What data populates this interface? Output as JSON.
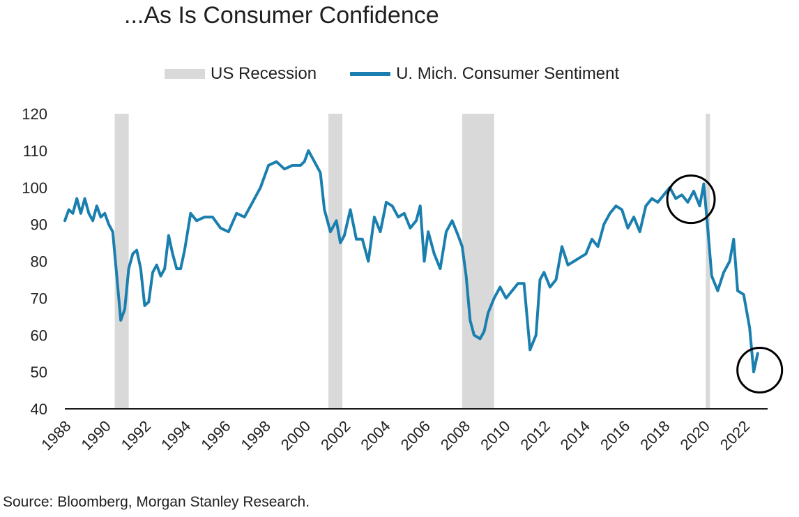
{
  "title": "...As Is Consumer Confidence",
  "source": "Source: Bloomberg, Morgan Stanley Research.",
  "chart_data": {
    "type": "line",
    "title": "...As Is Consumer Confidence",
    "ylim": [
      40,
      120
    ],
    "yticks": [
      40,
      50,
      60,
      70,
      80,
      90,
      100,
      110,
      120
    ],
    "xlim": [
      1988,
      2023.2
    ],
    "xticks": [
      "1988",
      "1990",
      "1992",
      "1994",
      "1996",
      "1998",
      "2000",
      "2002",
      "2004",
      "2006",
      "2008",
      "2010",
      "2012",
      "2014",
      "2016",
      "2018",
      "2020",
      "2022"
    ],
    "grid": false,
    "legend_position": "top",
    "recessions": {
      "name": "US Recession",
      "color": "#d9d9d9",
      "periods": [
        [
          1990.5,
          1991.2
        ],
        [
          2001.2,
          2001.9
        ],
        [
          2007.9,
          2009.5
        ],
        [
          2020.1,
          2020.3
        ]
      ]
    },
    "series": [
      {
        "name": "U. Mich. Consumer Sentiment",
        "color": "#1a7fae",
        "x": [
          1988.0,
          1988.2,
          1988.4,
          1988.6,
          1988.8,
          1989.0,
          1989.2,
          1989.4,
          1989.6,
          1989.8,
          1990.0,
          1990.2,
          1990.4,
          1990.6,
          1990.8,
          1991.0,
          1991.2,
          1991.4,
          1991.6,
          1991.8,
          1992.0,
          1992.2,
          1992.4,
          1992.6,
          1992.8,
          1993.0,
          1993.2,
          1993.4,
          1993.6,
          1993.8,
          1994.0,
          1994.3,
          1994.6,
          1995.0,
          1995.4,
          1995.8,
          1996.2,
          1996.6,
          1997.0,
          1997.4,
          1997.8,
          1998.2,
          1998.6,
          1999.0,
          1999.4,
          1999.8,
          2000.0,
          2000.2,
          2000.5,
          2000.8,
          2001.0,
          2001.3,
          2001.6,
          2001.8,
          2002.0,
          2002.3,
          2002.6,
          2002.9,
          2003.2,
          2003.5,
          2003.8,
          2004.1,
          2004.4,
          2004.7,
          2005.0,
          2005.3,
          2005.6,
          2005.8,
          2006.0,
          2006.2,
          2006.5,
          2006.8,
          2007.1,
          2007.4,
          2007.7,
          2007.9,
          2008.1,
          2008.3,
          2008.5,
          2008.8,
          2009.0,
          2009.2,
          2009.5,
          2009.8,
          2010.1,
          2010.4,
          2010.7,
          2011.0,
          2011.3,
          2011.6,
          2011.8,
          2012.0,
          2012.3,
          2012.6,
          2012.9,
          2013.2,
          2013.5,
          2013.8,
          2014.1,
          2014.4,
          2014.7,
          2015.0,
          2015.3,
          2015.6,
          2015.9,
          2016.2,
          2016.5,
          2016.8,
          2017.1,
          2017.4,
          2017.7,
          2018.0,
          2018.3,
          2018.6,
          2018.9,
          2019.2,
          2019.5,
          2019.8,
          2020.0,
          2020.2,
          2020.4,
          2020.7,
          2021.0,
          2021.3,
          2021.5,
          2021.7,
          2022.0,
          2022.3,
          2022.5,
          2022.7
        ],
        "values": [
          91,
          94,
          93,
          97,
          93,
          97,
          93,
          91,
          95,
          92,
          93,
          90,
          88,
          76,
          64,
          67,
          78,
          82,
          83,
          78,
          68,
          69,
          77,
          79,
          76,
          78,
          87,
          82,
          78,
          78,
          83,
          93,
          91,
          92,
          92,
          89,
          88,
          93,
          92,
          96,
          100,
          106,
          107,
          105,
          106,
          106,
          107,
          110,
          107,
          104,
          94,
          88,
          91,
          85,
          87,
          94,
          86,
          86,
          80,
          92,
          88,
          96,
          95,
          92,
          93,
          89,
          91,
          95,
          80,
          88,
          82,
          78,
          88,
          91,
          87,
          84,
          76,
          64,
          60,
          59,
          61,
          66,
          70,
          73,
          70,
          72,
          74,
          74,
          56,
          60,
          75,
          77,
          73,
          75,
          84,
          79,
          80,
          81,
          82,
          86,
          84,
          90,
          93,
          95,
          94,
          89,
          92,
          88,
          95,
          97,
          96,
          98,
          100,
          97,
          98,
          96,
          99,
          95,
          101,
          89,
          76,
          72,
          77,
          80,
          86,
          72,
          71,
          62,
          50,
          55
        ]
      }
    ]
  }
}
